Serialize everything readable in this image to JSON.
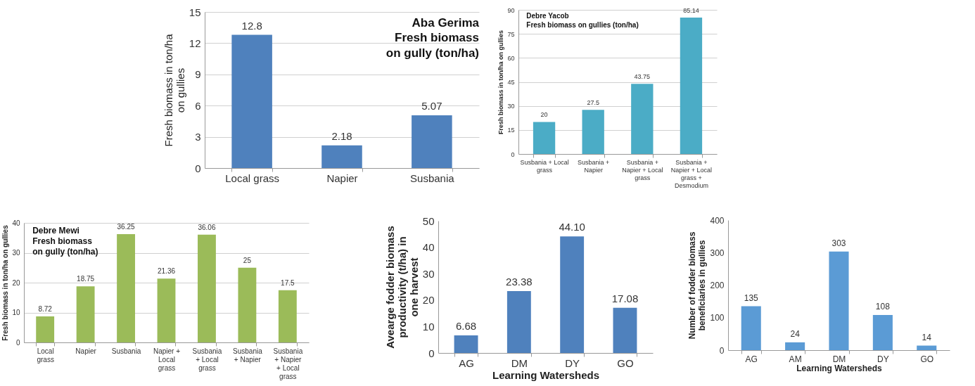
{
  "chart_data": [
    {
      "type": "bar",
      "title": "Aba Gerima\nFresh biomass\non gully (ton/ha)",
      "ylabel": "Fresh biomass in ton/ha\non gullies",
      "categories": [
        "Local grass",
        "Napier",
        "Susbania"
      ],
      "values": [
        12.8,
        2.18,
        5.07
      ],
      "color": "#4f81bd",
      "ylim": [
        0,
        15
      ],
      "yticks": [
        0,
        3,
        6,
        9,
        12,
        15
      ],
      "grid": "y",
      "data_labels": true
    },
    {
      "type": "bar",
      "title": "Debre Yacob\nFresh biomass on gullies (ton/ha)",
      "ylabel": "Fresh biomass in ton/ha on gullies",
      "categories": [
        "Susbania + Local grass",
        "Susbania + Napier",
        "Susbania + Napier + Local grass",
        "Susbania + Napier + Local grass + Desmodium"
      ],
      "values": [
        20,
        27.5,
        43.75,
        85.14
      ],
      "color": "#4bacc6",
      "ylim": [
        0,
        90
      ],
      "yticks": [
        0,
        15,
        30,
        45,
        60,
        75,
        90
      ],
      "grid": "y",
      "data_labels": true
    },
    {
      "type": "bar",
      "title": "Debre Mewi\nFresh biomass\non gully (ton/ha)",
      "ylabel": "Fresh biomass in ton/ha on gullies",
      "categories": [
        "Local grass",
        "Napier",
        "Susbania",
        "Napier + Local grass",
        "Susbania + Local grass",
        "Susbania + Napier",
        "Susbania + Napier + Local grass"
      ],
      "values": [
        8.72,
        18.75,
        36.25,
        21.36,
        36.06,
        25,
        17.5
      ],
      "color": "#9bbb59",
      "ylim": [
        0,
        40
      ],
      "yticks": [
        0,
        10,
        20,
        30,
        40
      ],
      "grid": "y",
      "data_labels": true
    },
    {
      "type": "bar",
      "xlabel": "Learning Watersheds",
      "ylabel": "Avearge fodder biomass\nproductivity (t/ha) in\none harvest",
      "categories": [
        "AG",
        "DM",
        "DY",
        "GO"
      ],
      "values": [
        6.68,
        23.38,
        44.1,
        17.08
      ],
      "value_labels": [
        "6.68",
        "23.38",
        "44.10",
        "17.08"
      ],
      "color": "#4f81bd",
      "ylim": [
        0,
        50
      ],
      "yticks": [
        0,
        10,
        20,
        30,
        40,
        50
      ]
    },
    {
      "type": "bar",
      "xlabel": "Learning Watersheds",
      "ylabel": "Number of fodder biomass\nbeneficiaries in gullies",
      "categories": [
        "AG",
        "AM",
        "DM",
        "DY",
        "GO"
      ],
      "values": [
        135,
        24,
        303,
        108,
        14
      ],
      "color": "#5b9bd5",
      "ylim": [
        0,
        400
      ],
      "yticks": [
        0,
        100,
        200,
        300,
        400
      ],
      "data_labels": true
    }
  ]
}
